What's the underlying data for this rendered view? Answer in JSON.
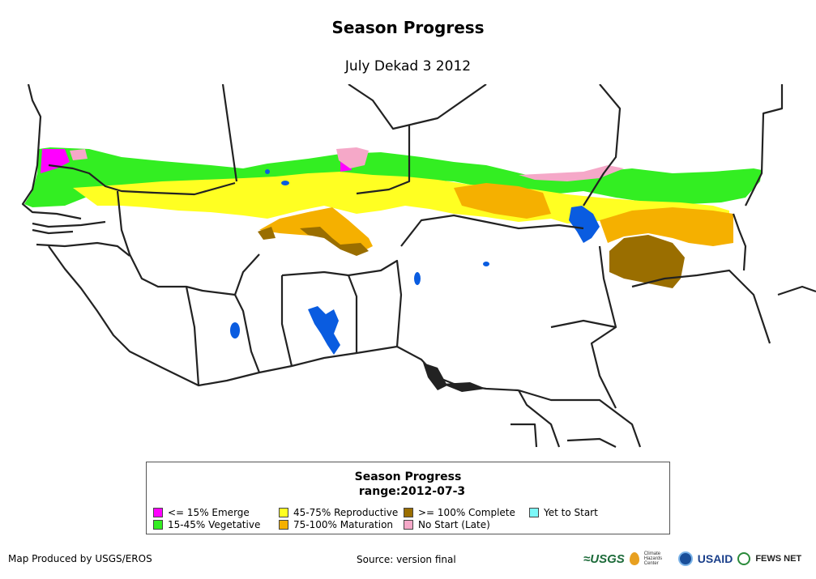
{
  "title": "Season Progress",
  "subtitle": "July Dekad 3 2012",
  "legend": {
    "title": "Season Progress",
    "subtitle": "range:2012-07-3",
    "items": [
      {
        "label": "<= 15% Emerge",
        "color": "#ff00ff"
      },
      {
        "label": "15-45% Vegetative",
        "color": "#33ee22"
      },
      {
        "label": "45-75% Reproductive",
        "color": "#ffff22"
      },
      {
        "label": "75-100% Maturation",
        "color": "#f5b000"
      },
      {
        "label": ">= 100% Complete",
        "color": "#9a6e00"
      },
      {
        "label": "No Start (Late)",
        "color": "#f5a8c8"
      },
      {
        "label": "Yet to Start",
        "color": "#7cf8f8"
      }
    ],
    "water_color": "#0a5ce0"
  },
  "footer": {
    "producer": "Map Produced by USGS/EROS",
    "source": "Source: version final"
  },
  "logos": {
    "usgs": "≈USGS",
    "chc": "Climate Hazards Center",
    "usaid": "USAID",
    "fews": "FEWS NET"
  }
}
